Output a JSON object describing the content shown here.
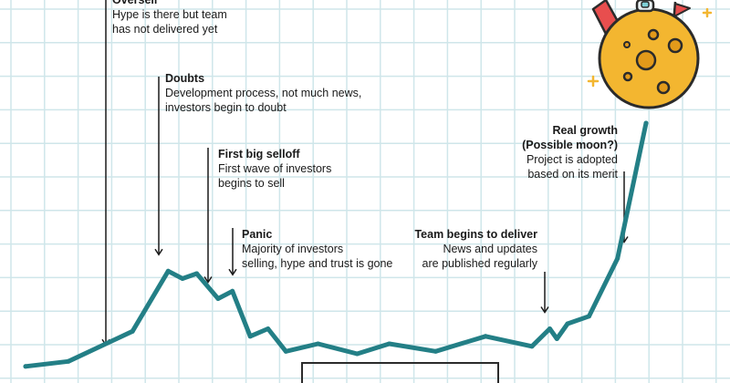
{
  "chart_data": {
    "type": "line",
    "title": "",
    "xlabel": "",
    "ylabel": "",
    "grid": true,
    "line_color": "#237f86",
    "grid_color": "#cfe6ea",
    "x": [
      0,
      1.2,
      3.0,
      4.0,
      4.4,
      4.8,
      5.4,
      5.8,
      6.3,
      6.8,
      7.3,
      8.2,
      9.3,
      10.2,
      11.5,
      12.9,
      14.2,
      14.7,
      14.9,
      15.2,
      15.8,
      16.6,
      17.4
    ],
    "values": [
      3,
      5,
      17,
      41,
      38,
      40,
      30,
      33,
      15,
      18,
      9,
      12,
      8,
      12,
      9,
      15,
      11,
      18,
      14,
      20,
      23,
      46,
      100
    ],
    "annotations": [
      {
        "title": "Oversell",
        "text": [
          "Hype is there but team",
          "has not delivered yet"
        ]
      },
      {
        "title": "Doubts",
        "text": [
          "Development process, not much news,",
          "investors begin to doubt"
        ]
      },
      {
        "title": "First big selloff",
        "text": [
          "First wave of investors",
          "begins to sell"
        ]
      },
      {
        "title": "Panic",
        "text": [
          "Majority of investors",
          "selling, hype and trust is gone"
        ]
      },
      {
        "title": "Team begins to deliver",
        "text": [
          "News and updates",
          "are published regularly"
        ]
      },
      {
        "title": "Real growth",
        "title2": "(Possible moon?)",
        "text": [
          "Project is adopted",
          "based on its merit"
        ]
      }
    ]
  },
  "illustration": {
    "moon_color": "#f3b630",
    "crater_color": "#e39a1a",
    "outline_color": "#2b2b2b",
    "rocket_color": "#e84e4e",
    "flag_color": "#e84e4e",
    "sparkle_color": "#f3b630"
  }
}
